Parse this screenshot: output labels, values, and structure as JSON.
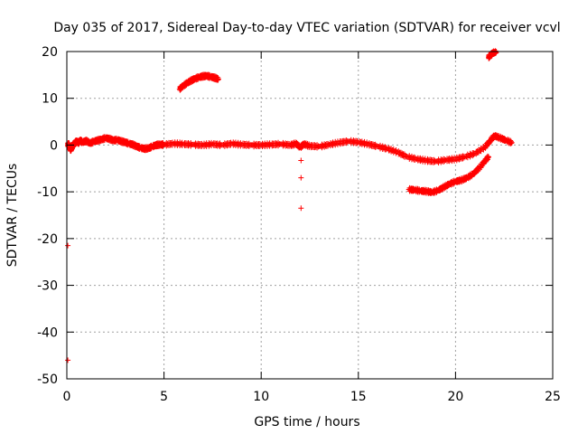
{
  "chart_data": {
    "type": "scatter",
    "title": "Day 035 of 2017, Sidereal Day-to-day VTEC variation (SDTVAR) for receiver vcvl",
    "xlabel": "GPS time / hours",
    "ylabel": "SDTVAR / TECUs",
    "xlim": [
      0,
      25
    ],
    "ylim": [
      -50,
      20
    ],
    "xticks": [
      0,
      5,
      10,
      15,
      20,
      25
    ],
    "yticks": [
      -50,
      -40,
      -30,
      -20,
      -10,
      0,
      10,
      20
    ],
    "grid": true,
    "marker": "+",
    "color": "#ff0000",
    "series": [
      {
        "name": "main trace",
        "x": [
          0.05,
          0.1,
          0.15,
          0.2,
          0.25,
          0.3,
          0.35,
          0.4,
          0.5,
          0.6,
          0.7,
          0.8,
          1.0,
          1.2,
          1.4,
          1.6,
          1.8,
          2.0,
          2.2,
          2.4,
          2.6,
          2.8,
          3.0,
          3.2,
          3.4,
          3.6,
          3.8,
          4.0,
          4.2,
          4.4,
          4.6,
          4.8,
          5.0,
          5.5,
          6.0,
          6.5,
          7.0,
          7.5,
          8.0,
          8.5,
          9.0,
          9.5,
          10.0,
          10.5,
          11.0,
          11.5,
          11.8,
          12.0,
          12.2,
          12.5,
          13.0,
          13.5,
          14.0,
          14.5,
          15.0,
          15.5,
          16.0,
          16.5,
          17.0,
          17.5,
          18.0,
          18.5,
          19.0,
          19.5,
          20.0,
          20.5,
          21.0,
          21.5,
          21.8,
          22.0,
          22.3,
          22.6,
          22.9
        ],
        "y": [
          0,
          0.3,
          -0.5,
          -1.0,
          -0.6,
          -0.2,
          0.1,
          0.4,
          0.8,
          0.5,
          1.0,
          0.6,
          0.9,
          0.4,
          0.8,
          1.0,
          1.2,
          1.5,
          1.3,
          1.0,
          1.1,
          0.8,
          0.6,
          0.3,
          0.1,
          -0.3,
          -0.6,
          -0.8,
          -0.7,
          -0.3,
          0,
          0.1,
          0.1,
          0.3,
          0.2,
          0.1,
          0,
          0.2,
          0,
          0.3,
          0.1,
          0,
          0,
          0.1,
          0.2,
          0,
          0.3,
          -0.5,
          0.2,
          -0.2,
          -0.3,
          0.1,
          0.5,
          0.8,
          0.6,
          0.2,
          -0.3,
          -0.8,
          -1.5,
          -2.5,
          -3.0,
          -3.3,
          -3.5,
          -3.2,
          -3.0,
          -2.5,
          -1.8,
          -0.5,
          1.0,
          2.0,
          1.5,
          1.0,
          0.5
        ]
      },
      {
        "name": "upper arc",
        "x": [
          5.8,
          6.0,
          6.2,
          6.4,
          6.6,
          6.8,
          7.0,
          7.2,
          7.4,
          7.6,
          7.8
        ],
        "y": [
          12.0,
          12.7,
          13.3,
          13.8,
          14.2,
          14.5,
          14.7,
          14.8,
          14.6,
          14.4,
          14.1
        ]
      },
      {
        "name": "lower arc",
        "x": [
          17.6,
          17.9,
          18.2,
          18.5,
          18.8,
          19.1,
          19.4,
          19.7,
          20.0,
          20.3,
          20.6,
          20.9,
          21.2,
          21.5,
          21.7
        ],
        "y": [
          -9.5,
          -9.6,
          -9.8,
          -9.9,
          -10.1,
          -9.7,
          -9.0,
          -8.3,
          -7.8,
          -7.5,
          -7.0,
          -6.2,
          -5.0,
          -3.5,
          -2.5
        ]
      },
      {
        "name": "top right segment",
        "x": [
          21.7,
          21.8,
          21.9,
          22.0,
          22.1
        ],
        "y": [
          18.8,
          19.2,
          19.6,
          19.9,
          20.0
        ]
      },
      {
        "name": "isolated points",
        "x": [
          0.05,
          0.05,
          12.05,
          12.05,
          12.05
        ],
        "y": [
          -21.5,
          -46.0,
          -3.3,
          -7.0,
          -13.5
        ]
      }
    ]
  }
}
